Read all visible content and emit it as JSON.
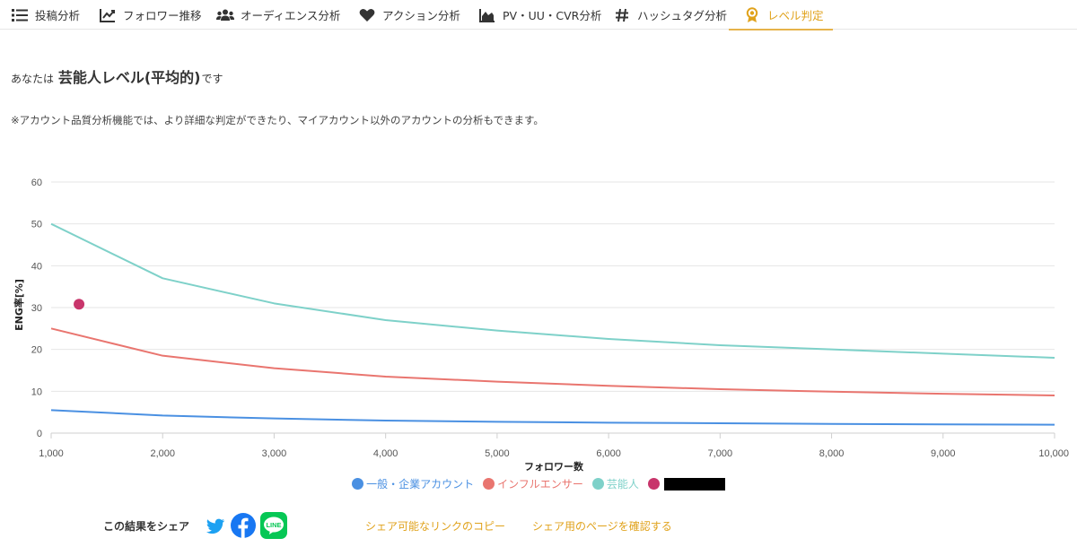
{
  "tabs": [
    {
      "label": "投稿分析",
      "icon": "list-icon"
    },
    {
      "label": "フォロワー推移",
      "icon": "trend-chart-icon"
    },
    {
      "label": "オーディエンス分析",
      "icon": "users-icon"
    },
    {
      "label": "アクション分析",
      "icon": "heart-icon"
    },
    {
      "label": "PV・UU・CVR分析",
      "icon": "area-chart-icon"
    },
    {
      "label": "ハッシュタグ分析",
      "icon": "hashtag-icon"
    },
    {
      "label": "レベル判定",
      "icon": "award-icon",
      "active": true
    }
  ],
  "result": {
    "prefix": "あなたは",
    "level": "芸能人レベル(平均的)",
    "suffix": "です",
    "note": "※アカウント品質分析機能では、より詳細な判定ができたり、マイアカウント以外のアカウントの分析もできます。"
  },
  "chart_data": {
    "type": "line",
    "xlabel": "フォロワー数",
    "ylabel": "ENG率[%]",
    "xlim": [
      1000,
      10000
    ],
    "ylim": [
      0,
      60
    ],
    "x_ticks": [
      "1,000",
      "2,000",
      "3,000",
      "4,000",
      "5,000",
      "6,000",
      "7,000",
      "8,000",
      "9,000",
      "10,000"
    ],
    "y_ticks": [
      "0",
      "10",
      "20",
      "30",
      "40",
      "50",
      "60"
    ],
    "grid": true,
    "legend_position": "bottom",
    "x": [
      1000,
      2000,
      3000,
      4000,
      5000,
      6000,
      7000,
      8000,
      9000,
      10000
    ],
    "series": [
      {
        "name": "一般・企業アカウント",
        "color": "#4a90e2",
        "values": [
          5.5,
          4.2,
          3.5,
          3.0,
          2.7,
          2.5,
          2.35,
          2.2,
          2.1,
          2.0
        ]
      },
      {
        "name": "インフルエンサー",
        "color": "#e9756f",
        "values": [
          25,
          18.5,
          15.5,
          13.5,
          12.3,
          11.3,
          10.5,
          9.9,
          9.4,
          9.0
        ]
      },
      {
        "name": "芸能人",
        "color": "#7ed1c9",
        "values": [
          50,
          37,
          31,
          27,
          24.5,
          22.5,
          21,
          20,
          19,
          18
        ]
      }
    ],
    "points": [
      {
        "name": "",
        "color": "#c8356b",
        "x": 1250,
        "y": 30.8,
        "name_redacted": true
      }
    ]
  },
  "share": {
    "label": "この結果をシェア",
    "twitter_icon": "twitter-icon",
    "facebook_icon": "facebook-icon",
    "line_icon": "line-icon",
    "line_text": "LINE",
    "copy_link": "シェア可能なリンクのコピー",
    "confirm_page": "シェア用のページを確認する"
  }
}
